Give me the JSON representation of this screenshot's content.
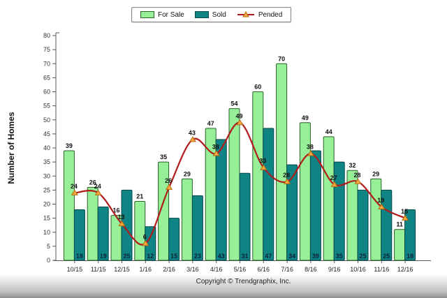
{
  "page": {
    "footer": "Copyright © Trendgraphix, Inc."
  },
  "chart_data": {
    "type": "bar",
    "subtype": "grouped bars with smoothed line overlay",
    "title": "",
    "ylabel": "Number of Homes",
    "xlabel": "",
    "ylim": [
      0,
      80
    ],
    "ytick_step": 5,
    "grid": false,
    "legend_position": "top-center",
    "categories": [
      "10/15",
      "11/15",
      "12/15",
      "1/16",
      "2/16",
      "3/16",
      "4/16",
      "5/16",
      "6/16",
      "7/16",
      "8/16",
      "9/16",
      "10/16",
      "11/16",
      "12/16"
    ],
    "series": [
      {
        "name": "For Sale",
        "type": "bar",
        "color": "#97ef97",
        "border": "#2a5f2a",
        "values": [
          39,
          26,
          16,
          21,
          35,
          29,
          47,
          54,
          60,
          70,
          49,
          44,
          32,
          29,
          11
        ]
      },
      {
        "name": "Sold",
        "type": "bar",
        "color": "#0e8484",
        "border": "#064848",
        "values": [
          18,
          19,
          25,
          12,
          15,
          23,
          43,
          31,
          47,
          34,
          39,
          35,
          25,
          25,
          18
        ]
      },
      {
        "name": "Pended",
        "type": "line",
        "color": "#b01b1b",
        "marker": "triangle-up",
        "marker_fill": "#f7a941",
        "marker_stroke": "#b56a10",
        "values": [
          24,
          24,
          13,
          6,
          26,
          43,
          38,
          49,
          33,
          28,
          38,
          27,
          28,
          19,
          15
        ]
      }
    ]
  }
}
